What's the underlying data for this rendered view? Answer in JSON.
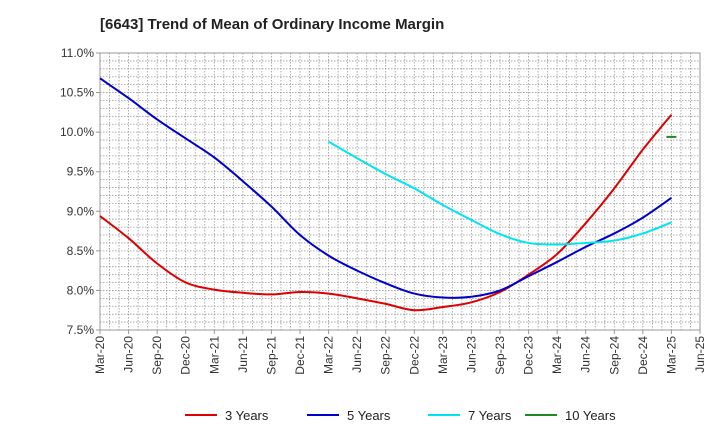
{
  "title": "[6643]  Trend of Mean of Ordinary Income Margin",
  "chart_data": {
    "type": "line",
    "title": "[6643]  Trend of Mean of Ordinary Income Margin",
    "xlabel": "",
    "ylabel": "",
    "x_ticks": [
      "Mar-20",
      "Jun-20",
      "Sep-20",
      "Dec-20",
      "Mar-21",
      "Jun-21",
      "Sep-21",
      "Dec-21",
      "Mar-22",
      "Jun-22",
      "Sep-22",
      "Dec-22",
      "Mar-23",
      "Jun-23",
      "Sep-23",
      "Dec-23",
      "Mar-24",
      "Jun-24",
      "Sep-24",
      "Dec-24",
      "Mar-25",
      "Jun-25"
    ],
    "y_ticks": [
      "7.5%",
      "8.0%",
      "8.5%",
      "9.0%",
      "9.5%",
      "10.0%",
      "10.5%",
      "11.0%"
    ],
    "ylim": [
      7.5,
      11.0
    ],
    "grid": true,
    "legend_position": "bottom",
    "series": [
      {
        "name": "3 Years",
        "color": "#dd0000",
        "points": [
          [
            "Mar-20",
            8.94
          ],
          [
            "Jun-20",
            8.66
          ],
          [
            "Sep-20",
            8.34
          ],
          [
            "Dec-20",
            8.1
          ],
          [
            "Mar-21",
            8.01
          ],
          [
            "Jun-21",
            7.97
          ],
          [
            "Sep-21",
            7.95
          ],
          [
            "Dec-21",
            7.98
          ],
          [
            "Mar-22",
            7.96
          ],
          [
            "Jun-22",
            7.9
          ],
          [
            "Sep-22",
            7.83
          ],
          [
            "Dec-22",
            7.75
          ],
          [
            "Mar-23",
            7.79
          ],
          [
            "Jun-23",
            7.85
          ],
          [
            "Sep-23",
            7.98
          ],
          [
            "Dec-23",
            8.2
          ],
          [
            "Mar-24",
            8.46
          ],
          [
            "Jun-24",
            8.85
          ],
          [
            "Sep-24",
            9.29
          ],
          [
            "Dec-24",
            9.78
          ],
          [
            "Mar-25",
            10.22
          ]
        ]
      },
      {
        "name": "5 Years",
        "color": "#0000cc",
        "points": [
          [
            "Mar-20",
            10.68
          ],
          [
            "Jun-20",
            10.43
          ],
          [
            "Sep-20",
            10.16
          ],
          [
            "Dec-20",
            9.92
          ],
          [
            "Mar-21",
            9.68
          ],
          [
            "Jun-21",
            9.38
          ],
          [
            "Sep-21",
            9.06
          ],
          [
            "Dec-21",
            8.7
          ],
          [
            "Mar-22",
            8.44
          ],
          [
            "Jun-22",
            8.25
          ],
          [
            "Sep-22",
            8.09
          ],
          [
            "Dec-22",
            7.96
          ],
          [
            "Mar-23",
            7.91
          ],
          [
            "Jun-23",
            7.92
          ],
          [
            "Sep-23",
            8.0
          ],
          [
            "Dec-23",
            8.18
          ],
          [
            "Mar-24",
            8.36
          ],
          [
            "Jun-24",
            8.55
          ],
          [
            "Sep-24",
            8.72
          ],
          [
            "Dec-24",
            8.92
          ],
          [
            "Mar-25",
            9.17
          ]
        ]
      },
      {
        "name": "7 Years",
        "color": "#00e5ee",
        "points": [
          [
            "Mar-22",
            9.88
          ],
          [
            "Jun-22",
            9.67
          ],
          [
            "Sep-22",
            9.47
          ],
          [
            "Dec-22",
            9.29
          ],
          [
            "Mar-23",
            9.08
          ],
          [
            "Jun-23",
            8.89
          ],
          [
            "Sep-23",
            8.71
          ],
          [
            "Dec-23",
            8.6
          ],
          [
            "Mar-24",
            8.58
          ],
          [
            "Jun-24",
            8.6
          ],
          [
            "Sep-24",
            8.63
          ],
          [
            "Dec-24",
            8.72
          ],
          [
            "Mar-25",
            8.86
          ]
        ]
      },
      {
        "name": "10 Years",
        "color": "#228822",
        "points": [
          [
            "Mar-25",
            9.94
          ]
        ]
      }
    ]
  }
}
